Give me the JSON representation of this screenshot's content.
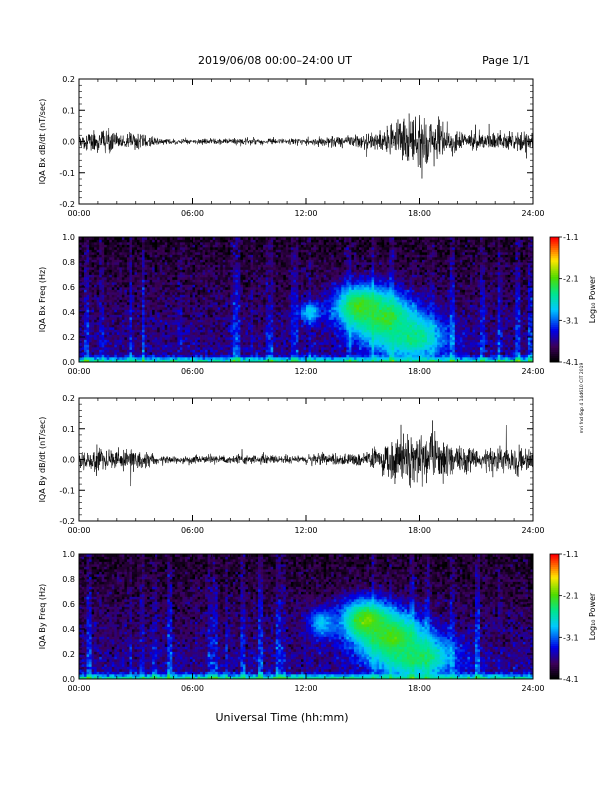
{
  "header": {
    "title": "2019/06/08  00:00–24:00 UT",
    "page": "Page 1/1"
  },
  "side_note": "mri fnd 6qp 4 14d610 CIT 2019",
  "x_axis_title": "Universal Time (hh:mm)",
  "chart_data": [
    {
      "type": "line",
      "ylabel": "IQA Bx dB/dt (nT/sec)",
      "xlim": [
        0,
        24
      ],
      "ylim": [
        -0.2,
        0.2
      ],
      "x_tick_labels": [
        "00:00",
        "06:00",
        "12:00",
        "18:00",
        "24:00"
      ],
      "y_tick_labels": [
        "-0.2",
        "-0.1",
        "0.0",
        "0.1",
        "0.2"
      ],
      "y_ticks": [
        -0.2,
        -0.1,
        0.0,
        0.1,
        0.2
      ],
      "series": [
        {
          "x": [
            0,
            0.5,
            1,
            1.5,
            2,
            2.5,
            3,
            3.5,
            4,
            4.5,
            5,
            5.5,
            6,
            6.5,
            7,
            7.5,
            8,
            8.5,
            9,
            9.5,
            10,
            10.5,
            11,
            11.5,
            12,
            12.5,
            13,
            13.5,
            14,
            14.5,
            15,
            15.5,
            16,
            16.5,
            17,
            17.5,
            18,
            18.5,
            19,
            19.5,
            20,
            20.5,
            21,
            21.5,
            22,
            22.5,
            23,
            23.5,
            24
          ],
          "amplitude": [
            0.04,
            0.06,
            0.07,
            0.09,
            0.05,
            0.06,
            0.08,
            0.05,
            0.03,
            0.02,
            0.02,
            0.02,
            0.02,
            0.02,
            0.02,
            0.02,
            0.02,
            0.03,
            0.02,
            0.02,
            0.03,
            0.02,
            0.02,
            0.02,
            0.03,
            0.03,
            0.03,
            0.03,
            0.04,
            0.04,
            0.05,
            0.06,
            0.08,
            0.13,
            0.17,
            0.19,
            0.2,
            0.17,
            0.13,
            0.09,
            0.07,
            0.06,
            0.06,
            0.06,
            0.07,
            0.07,
            0.07,
            0.08,
            0.05
          ]
        }
      ]
    },
    {
      "type": "heatmap",
      "ylabel": "IQA Bx Freq (Hz)",
      "xlim": [
        0,
        24
      ],
      "ylim": [
        0,
        1
      ],
      "x_tick_labels": [
        "00:00",
        "06:00",
        "12:00",
        "18:00",
        "24:00"
      ],
      "y_tick_labels": [
        "0.0",
        "0.2",
        "0.4",
        "0.6",
        "0.8",
        "1.0"
      ],
      "y_ticks": [
        0,
        0.2,
        0.4,
        0.6,
        0.8,
        1.0
      ],
      "colorbar": {
        "label": "Log₁₀ Power",
        "range": [
          -4.1,
          -1.1
        ],
        "tick_labels": [
          "-1.1",
          "-2.1",
          "-3.1",
          "-4.1"
        ],
        "ticks": [
          -1.1,
          -2.1,
          -3.1,
          -4.1
        ]
      },
      "features": [
        {
          "x_hr": 14.9,
          "f_hz": 0.45,
          "sx": 1.0,
          "sf": 0.12,
          "power": -2.1
        },
        {
          "x_hr": 16.2,
          "f_hz": 0.35,
          "sx": 1.2,
          "sf": 0.14,
          "power": -2.2
        },
        {
          "x_hr": 17.6,
          "f_hz": 0.2,
          "sx": 1.3,
          "sf": 0.12,
          "power": -2.4
        },
        {
          "x_hr": 12.2,
          "f_hz": 0.4,
          "sx": 0.4,
          "sf": 0.06,
          "power": -2.7
        }
      ]
    },
    {
      "type": "line",
      "ylabel": "IQA By dB/dt (nT/sec)",
      "xlim": [
        0,
        24
      ],
      "ylim": [
        -0.2,
        0.2
      ],
      "x_tick_labels": [
        "00:00",
        "06:00",
        "12:00",
        "18:00",
        "24:00"
      ],
      "y_tick_labels": [
        "-0.2",
        "-0.1",
        "0.0",
        "0.1",
        "0.2"
      ],
      "y_ticks": [
        -0.2,
        -0.1,
        0.0,
        0.1,
        0.2
      ],
      "series": [
        {
          "x": [
            0,
            0.5,
            1,
            1.5,
            2,
            2.5,
            3,
            3.5,
            4,
            4.5,
            5,
            5.5,
            6,
            6.5,
            7,
            7.5,
            8,
            8.5,
            9,
            9.5,
            10,
            10.5,
            11,
            11.5,
            12,
            12.5,
            13,
            13.5,
            14,
            14.5,
            15,
            15.5,
            16,
            16.5,
            17,
            17.5,
            18,
            18.5,
            19,
            19.5,
            20,
            20.5,
            21,
            21.5,
            22,
            22.5,
            23,
            23.5,
            24
          ],
          "amplitude": [
            0.05,
            0.08,
            0.1,
            0.08,
            0.07,
            0.08,
            0.09,
            0.06,
            0.04,
            0.03,
            0.03,
            0.03,
            0.03,
            0.03,
            0.03,
            0.03,
            0.03,
            0.03,
            0.03,
            0.03,
            0.04,
            0.03,
            0.03,
            0.03,
            0.03,
            0.04,
            0.04,
            0.04,
            0.05,
            0.05,
            0.06,
            0.08,
            0.12,
            0.16,
            0.2,
            0.2,
            0.2,
            0.2,
            0.18,
            0.14,
            0.11,
            0.1,
            0.1,
            0.09,
            0.1,
            0.1,
            0.1,
            0.1,
            0.06
          ]
        }
      ]
    },
    {
      "type": "heatmap",
      "ylabel": "IQA By Freq (Hz)",
      "xlim": [
        0,
        24
      ],
      "ylim": [
        0,
        1
      ],
      "x_tick_labels": [
        "00:00",
        "06:00",
        "12:00",
        "18:00",
        "24:00"
      ],
      "y_tick_labels": [
        "0.0",
        "0.2",
        "0.4",
        "0.6",
        "0.8",
        "1.0"
      ],
      "y_ticks": [
        0,
        0.2,
        0.4,
        0.6,
        0.8,
        1.0
      ],
      "colorbar": {
        "label": "Log₁₀ Power",
        "range": [
          -4.1,
          -1.1
        ],
        "tick_labels": [
          "-1.1",
          "-2.1",
          "-3.1",
          "-4.1"
        ],
        "ticks": [
          -1.1,
          -2.1,
          -3.1,
          -4.1
        ]
      },
      "features": [
        {
          "x_hr": 15.2,
          "f_hz": 0.47,
          "sx": 1.0,
          "sf": 0.12,
          "power": -2.0
        },
        {
          "x_hr": 16.6,
          "f_hz": 0.33,
          "sx": 1.2,
          "sf": 0.14,
          "power": -2.1
        },
        {
          "x_hr": 17.9,
          "f_hz": 0.18,
          "sx": 1.4,
          "sf": 0.12,
          "power": -2.3
        },
        {
          "x_hr": 12.8,
          "f_hz": 0.45,
          "sx": 0.5,
          "sf": 0.08,
          "power": -2.8
        }
      ]
    }
  ]
}
